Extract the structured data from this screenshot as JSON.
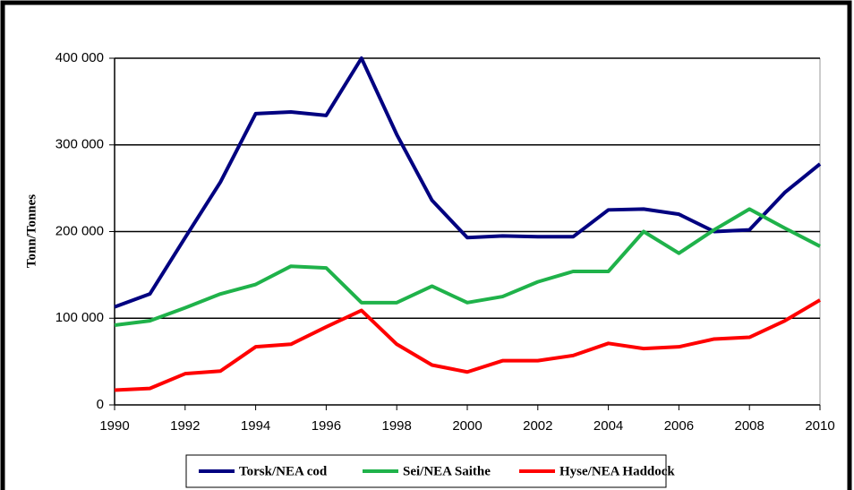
{
  "chart_data": {
    "type": "line",
    "y_label": "Tonn/Tonnes",
    "x": [
      1990,
      1991,
      1992,
      1993,
      1994,
      1995,
      1996,
      1997,
      1998,
      1999,
      2000,
      2001,
      2002,
      2003,
      2004,
      2005,
      2006,
      2007,
      2008,
      2009,
      2010
    ],
    "series": [
      {
        "name": "Torsk/NEA cod",
        "color": "#000080",
        "values": [
          113000,
          128000,
          193000,
          257000,
          336000,
          338000,
          334000,
          400000,
          312000,
          236000,
          193000,
          195000,
          194000,
          194000,
          225000,
          226000,
          220000,
          200000,
          202000,
          245000,
          278000
        ]
      },
      {
        "name": "Sei/NEA Saithe",
        "color": "#1fb24a",
        "values": [
          92000,
          97000,
          112000,
          128000,
          139000,
          160000,
          158000,
          118000,
          118000,
          137000,
          118000,
          125000,
          142000,
          154000,
          154000,
          200000,
          175000,
          202000,
          226000,
          204000,
          183000
        ]
      },
      {
        "name": "Hyse/NEA Haddock",
        "color": "#ff0000",
        "values": [
          17000,
          19000,
          36000,
          39000,
          67000,
          70000,
          90000,
          109000,
          70000,
          46000,
          38000,
          51000,
          51000,
          57000,
          71000,
          65000,
          67000,
          76000,
          78000,
          97000,
          121000
        ]
      }
    ],
    "xlim": [
      1990,
      2010
    ],
    "xticks": [
      1990,
      1992,
      1994,
      1996,
      1998,
      2000,
      2002,
      2004,
      2006,
      2008,
      2010
    ],
    "ylim": [
      0,
      400000
    ],
    "yticks": [
      0,
      {
        "value": 100000,
        "label": "100 000"
      },
      {
        "value": 200000,
        "label": "200 000"
      },
      {
        "value": 300000,
        "label": "300 000"
      },
      {
        "value": 400000,
        "label": "400 000"
      }
    ],
    "grid": true,
    "legend": "bottom"
  }
}
